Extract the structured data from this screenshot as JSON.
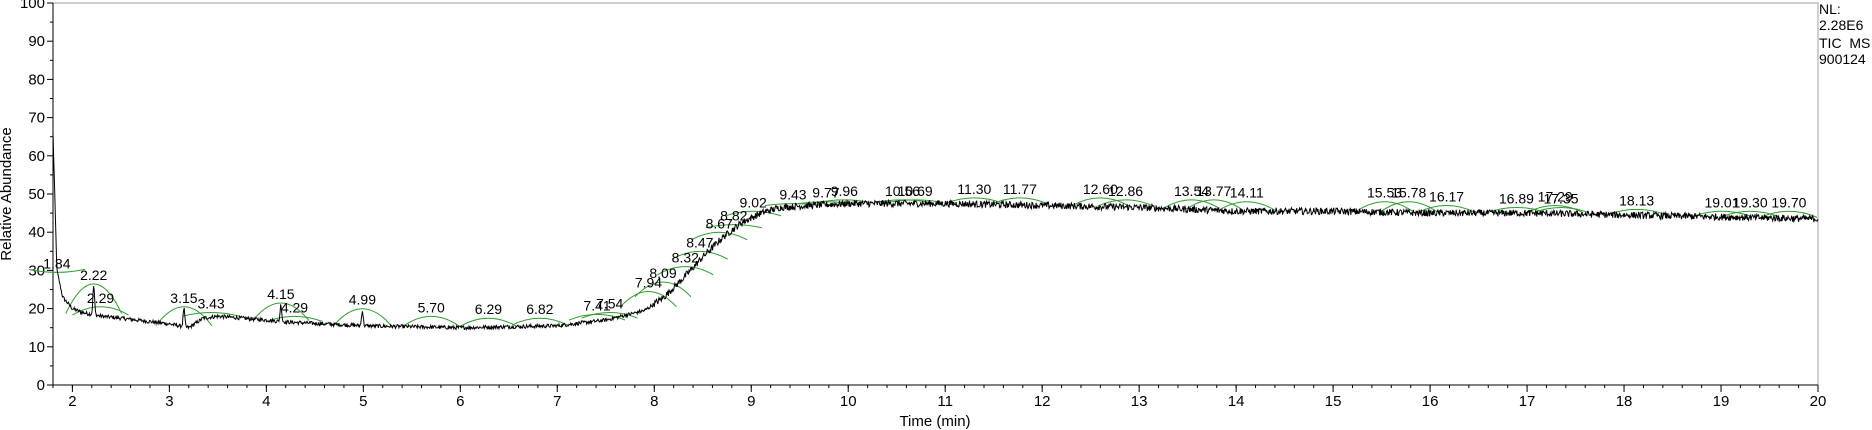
{
  "chart_data": {
    "type": "line",
    "xlabel": "Time (min)",
    "ylabel": "Relative Abundance",
    "xlim": [
      1.8,
      20
    ],
    "ylim": [
      0,
      100
    ],
    "x_ticks": [
      "2",
      "3",
      "4",
      "5",
      "6",
      "7",
      "8",
      "9",
      "10",
      "11",
      "12",
      "13",
      "14",
      "15",
      "16",
      "17",
      "18",
      "19",
      "20"
    ],
    "y_ticks": [
      "0",
      "10",
      "20",
      "30",
      "40",
      "50",
      "60",
      "70",
      "80",
      "90",
      "100"
    ],
    "info": [
      "NL:",
      "2.28E6",
      "TIC  MS",
      "900124"
    ],
    "baseline": [
      [
        1.8,
        66
      ],
      [
        1.84,
        30
      ],
      [
        1.9,
        23
      ],
      [
        2.0,
        20
      ],
      [
        2.1,
        19
      ],
      [
        2.2,
        18.5
      ],
      [
        2.3,
        18
      ],
      [
        2.5,
        17.5
      ],
      [
        3.0,
        16
      ],
      [
        3.2,
        15
      ],
      [
        3.35,
        17.5
      ],
      [
        3.5,
        18
      ],
      [
        4.0,
        17
      ],
      [
        4.2,
        16.5
      ],
      [
        5.0,
        15.5
      ],
      [
        6.0,
        15
      ],
      [
        7.0,
        15.5
      ],
      [
        7.5,
        17
      ],
      [
        7.9,
        19.5
      ],
      [
        8.1,
        23
      ],
      [
        8.3,
        28
      ],
      [
        8.5,
        33.5
      ],
      [
        8.7,
        38.5
      ],
      [
        8.9,
        42.5
      ],
      [
        9.1,
        45
      ],
      [
        9.3,
        46.5
      ],
      [
        9.6,
        47
      ],
      [
        10.0,
        47.5
      ],
      [
        10.5,
        47.5
      ],
      [
        11.0,
        47.5
      ],
      [
        12.0,
        47
      ],
      [
        13.0,
        46.5
      ],
      [
        13.5,
        46
      ],
      [
        14.0,
        45.5
      ],
      [
        15.0,
        45.5
      ],
      [
        16.0,
        45
      ],
      [
        17.0,
        45
      ],
      [
        18.0,
        44.5
      ],
      [
        19.0,
        44
      ],
      [
        20.0,
        43.5
      ]
    ],
    "spikes": [
      {
        "x": 2.22,
        "y": 26
      },
      {
        "x": 3.15,
        "y": 20
      },
      {
        "x": 4.15,
        "y": 21
      },
      {
        "x": 4.99,
        "y": 19.5
      }
    ],
    "peaks": [
      {
        "rt": "1.84",
        "x": 1.84,
        "y": 30
      },
      {
        "rt": "2.22",
        "x": 2.22,
        "y": 27
      },
      {
        "rt": "2.29",
        "x": 2.29,
        "y": 21
      },
      {
        "rt": "3.15",
        "x": 3.15,
        "y": 21
      },
      {
        "rt": "3.43",
        "x": 3.43,
        "y": 19.5
      },
      {
        "rt": "4.15",
        "x": 4.15,
        "y": 22
      },
      {
        "rt": "4.29",
        "x": 4.29,
        "y": 18.5
      },
      {
        "rt": "4.99",
        "x": 4.99,
        "y": 20.5
      },
      {
        "rt": "5.70",
        "x": 5.7,
        "y": 18.5
      },
      {
        "rt": "6.29",
        "x": 6.29,
        "y": 18
      },
      {
        "rt": "6.82",
        "x": 6.82,
        "y": 18
      },
      {
        "rt": "7.41",
        "x": 7.41,
        "y": 19
      },
      {
        "rt": "7.54",
        "x": 7.54,
        "y": 19.5
      },
      {
        "rt": "7.94",
        "x": 7.94,
        "y": 25
      },
      {
        "rt": "8.09",
        "x": 8.09,
        "y": 27.5
      },
      {
        "rt": "8.32",
        "x": 8.32,
        "y": 31.5
      },
      {
        "rt": "8.47",
        "x": 8.47,
        "y": 35.5
      },
      {
        "rt": "8.67",
        "x": 8.67,
        "y": 40.5
      },
      {
        "rt": "8.82",
        "x": 8.82,
        "y": 42.5
      },
      {
        "rt": "9.02",
        "x": 9.02,
        "y": 46
      },
      {
        "rt": "9.43",
        "x": 9.43,
        "y": 48
      },
      {
        "rt": "9.77",
        "x": 9.77,
        "y": 48.5
      },
      {
        "rt": "9.96",
        "x": 9.96,
        "y": 49
      },
      {
        "rt": "10.56",
        "x": 10.56,
        "y": 49
      },
      {
        "rt": "10.69",
        "x": 10.69,
        "y": 49
      },
      {
        "rt": "11.30",
        "x": 11.3,
        "y": 49.5
      },
      {
        "rt": "11.77",
        "x": 11.77,
        "y": 49.5
      },
      {
        "rt": "12.60",
        "x": 12.6,
        "y": 49.5
      },
      {
        "rt": "12.86",
        "x": 12.86,
        "y": 49
      },
      {
        "rt": "13.54",
        "x": 13.54,
        "y": 49
      },
      {
        "rt": "13.77",
        "x": 13.77,
        "y": 49
      },
      {
        "rt": "14.11",
        "x": 14.11,
        "y": 48.5
      },
      {
        "rt": "15.53",
        "x": 15.53,
        "y": 48.5
      },
      {
        "rt": "15.78",
        "x": 15.78,
        "y": 48.5
      },
      {
        "rt": "16.17",
        "x": 16.17,
        "y": 47.5
      },
      {
        "rt": "16.89",
        "x": 16.89,
        "y": 47
      },
      {
        "rt": "17.29",
        "x": 17.29,
        "y": 47.5
      },
      {
        "rt": "17.35",
        "x": 17.35,
        "y": 47
      },
      {
        "rt": "18.13",
        "x": 18.13,
        "y": 46.5
      },
      {
        "rt": "19.01",
        "x": 19.01,
        "y": 46
      },
      {
        "rt": "19.30",
        "x": 19.3,
        "y": 46
      },
      {
        "rt": "19.70",
        "x": 19.7,
        "y": 46
      }
    ],
    "colors": {
      "trace": "#000000",
      "peak_marker": "#2e9e2e",
      "axis": "#000000",
      "frame": "#a0a0a0"
    }
  }
}
